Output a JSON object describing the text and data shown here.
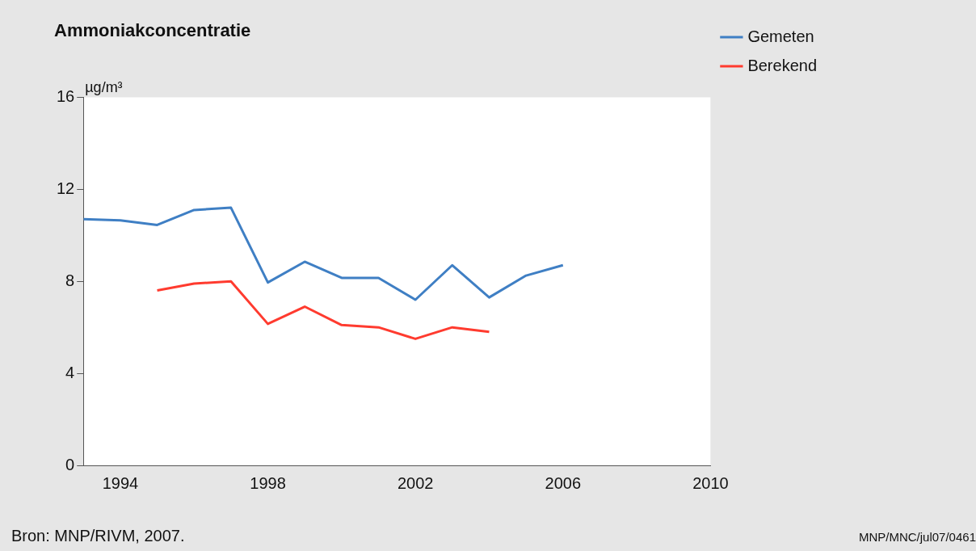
{
  "chart_data": {
    "type": "line",
    "title": "Ammoniakconcentratie",
    "ylabel": "µg/m³",
    "x": [
      1993,
      1994,
      1995,
      1996,
      1997,
      1998,
      1999,
      2000,
      2001,
      2002,
      2003,
      2004,
      2005,
      2006
    ],
    "series": [
      {
        "name": "Gemeten",
        "color": "#3f7fc4",
        "values": [
          10.7,
          10.65,
          10.45,
          11.1,
          11.2,
          7.95,
          8.85,
          8.15,
          8.15,
          7.2,
          8.7,
          7.3,
          8.25,
          8.7
        ]
      },
      {
        "name": "Berekend",
        "color": "#ff3b2f",
        "values": [
          null,
          null,
          7.6,
          7.9,
          8.0,
          6.15,
          6.9,
          6.1,
          6.0,
          5.5,
          6.0,
          5.8,
          null,
          null
        ]
      }
    ],
    "xlim": [
      1993,
      2010
    ],
    "xticks": [
      1994,
      1998,
      2002,
      2006,
      2010
    ],
    "ylim": [
      0,
      16
    ],
    "yticks": [
      0,
      4,
      8,
      12,
      16
    ],
    "grid": false,
    "legend": "top right",
    "marker": "none",
    "line_style": "solid",
    "annotations": [
      "Bron: MNP/RIVM, 2007.",
      "MNP/MNC/jul07/0461"
    ]
  }
}
